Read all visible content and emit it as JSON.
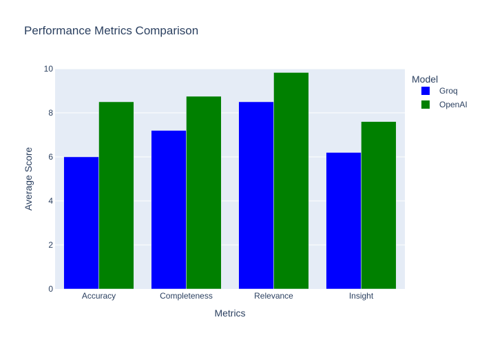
{
  "chart_data": {
    "type": "bar",
    "title": "Performance Metrics Comparison",
    "xlabel": "Metrics",
    "ylabel": "Average Score",
    "categories": [
      "Accuracy",
      "Completeness",
      "Relevance",
      "Insight"
    ],
    "series": [
      {
        "name": "Groq",
        "color": "#0000ff",
        "values": [
          6.0,
          7.2,
          8.5,
          6.2
        ]
      },
      {
        "name": "OpenAI",
        "color": "#008000",
        "values": [
          8.5,
          8.75,
          9.83,
          7.6
        ]
      }
    ],
    "ylim": [
      0,
      10
    ],
    "yticks": [
      "0",
      "2",
      "4",
      "6",
      "8",
      "10"
    ],
    "legend": {
      "title": "Model",
      "position": "top-right"
    },
    "grid": true,
    "plot_background": "#e5ecf6"
  }
}
